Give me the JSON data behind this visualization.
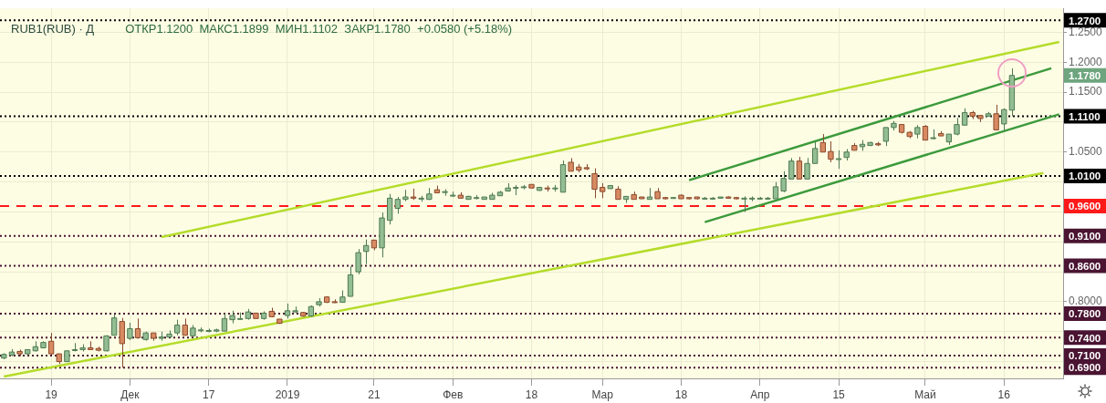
{
  "chart_data": {
    "type": "candlestick",
    "title": "RUB1(RUB) · Д",
    "subtitle": "ОТКР1.1200  МАКС1.1899  МИН1.1102  ЗАКР1.1780  +0.0580 (+5.18%)",
    "categories": [
      null,
      null,
      null,
      null,
      null,
      null,
      "19",
      null,
      null,
      null,
      null,
      null,
      null,
      null,
      null,
      null,
      "Дек",
      null,
      null,
      null,
      null,
      null,
      null,
      null,
      null,
      null,
      "17",
      null,
      null,
      null,
      null,
      null,
      null,
      null,
      null,
      null,
      "2019",
      null,
      null,
      null,
      null,
      null,
      null,
      null,
      null,
      null,
      null,
      "21",
      null,
      null,
      null,
      null,
      null,
      null,
      null,
      null,
      null,
      "Фев",
      null,
      null,
      null,
      null,
      null,
      null,
      null,
      null,
      null,
      "18",
      null,
      null,
      null,
      null,
      null,
      null,
      null,
      null,
      "Мар",
      null,
      null,
      null,
      null,
      null,
      null,
      null,
      null,
      null,
      "18",
      null,
      null,
      null,
      null,
      null,
      null,
      null,
      null,
      null,
      "Апр",
      null,
      null,
      null,
      null,
      null,
      null,
      null,
      null,
      null,
      "15",
      null,
      null,
      null,
      null,
      null,
      null,
      null,
      null,
      null,
      null,
      "Май",
      null,
      null,
      null,
      null,
      null,
      null,
      null,
      null,
      null,
      "16",
      null,
      null,
      null,
      null,
      null,
      null,
      null
    ],
    "ohlc": [
      [
        0.706,
        0.714,
        0.704,
        0.712
      ],
      [
        0.711,
        0.721,
        0.709,
        0.716
      ],
      [
        0.717,
        0.72,
        0.709,
        0.713
      ],
      [
        0.713,
        0.72,
        0.711,
        0.72
      ],
      [
        0.718,
        0.734,
        0.717,
        0.725
      ],
      [
        0.723,
        0.734,
        0.722,
        0.732
      ],
      [
        0.734,
        0.748,
        0.712,
        0.713
      ],
      [
        0.713,
        0.713,
        0.696,
        0.7
      ],
      [
        0.7,
        0.718,
        0.7,
        0.718
      ],
      [
        0.719,
        0.731,
        0.717,
        0.72
      ],
      [
        0.72,
        0.729,
        0.717,
        0.723
      ],
      [
        0.723,
        0.734,
        0.72,
        0.72
      ],
      [
        0.722,
        0.725,
        0.717,
        0.719
      ],
      [
        0.718,
        0.744,
        0.717,
        0.743
      ],
      [
        0.744,
        0.779,
        0.744,
        0.773
      ],
      [
        0.767,
        0.773,
        0.69,
        0.73
      ],
      [
        0.739,
        0.765,
        0.736,
        0.755
      ],
      [
        0.755,
        0.772,
        0.739,
        0.74
      ],
      [
        0.737,
        0.75,
        0.735,
        0.748
      ],
      [
        0.748,
        0.748,
        0.735,
        0.739
      ],
      [
        0.739,
        0.75,
        0.735,
        0.741
      ],
      [
        0.741,
        0.752,
        0.74,
        0.746
      ],
      [
        0.748,
        0.77,
        0.744,
        0.761
      ],
      [
        0.761,
        0.772,
        0.744,
        0.744
      ],
      [
        0.743,
        0.761,
        0.742,
        0.756
      ],
      [
        0.753,
        0.757,
        0.749,
        0.753
      ],
      [
        0.751,
        0.755,
        0.749,
        0.752
      ],
      [
        0.751,
        0.755,
        0.749,
        0.753
      ],
      [
        0.751,
        0.78,
        0.751,
        0.772
      ],
      [
        0.77,
        0.785,
        0.764,
        0.777
      ],
      [
        0.772,
        0.782,
        0.772,
        0.772
      ],
      [
        0.772,
        0.788,
        0.77,
        0.783
      ],
      [
        0.781,
        0.781,
        0.772,
        0.772
      ],
      [
        0.772,
        0.784,
        0.77,
        0.781
      ],
      [
        0.784,
        0.79,
        0.774,
        0.775
      ],
      [
        0.771,
        0.771,
        0.763,
        0.764
      ],
      [
        0.777,
        0.797,
        0.772,
        0.785
      ],
      [
        0.783,
        0.792,
        0.781,
        0.785
      ],
      [
        0.782,
        0.783,
        0.775,
        0.776
      ],
      [
        0.776,
        0.794,
        0.775,
        0.792
      ],
      [
        0.795,
        0.806,
        0.792,
        0.8
      ],
      [
        0.808,
        0.809,
        0.798,
        0.799
      ],
      [
        0.8,
        0.804,
        0.798,
        0.799
      ],
      [
        0.799,
        0.819,
        0.799,
        0.808
      ],
      [
        0.809,
        0.859,
        0.809,
        0.845
      ],
      [
        0.85,
        0.888,
        0.846,
        0.882
      ],
      [
        0.884,
        0.904,
        0.863,
        0.894
      ],
      [
        0.903,
        0.903,
        0.886,
        0.89
      ],
      [
        0.89,
        0.949,
        0.874,
        0.94
      ],
      [
        0.936,
        0.98,
        0.929,
        0.973
      ],
      [
        0.956,
        0.975,
        0.947,
        0.971
      ],
      [
        0.971,
        0.987,
        0.968,
        0.975
      ],
      [
        0.975,
        0.989,
        0.97,
        0.973
      ],
      [
        0.973,
        0.977,
        0.967,
        0.973
      ],
      [
        0.971,
        0.99,
        0.97,
        0.98
      ],
      [
        0.987,
        0.994,
        0.982,
        0.982
      ],
      [
        0.984,
        0.988,
        0.977,
        0.984
      ],
      [
        0.978,
        0.984,
        0.975,
        0.978
      ],
      [
        0.978,
        0.983,
        0.973,
        0.973
      ],
      [
        0.971,
        0.977,
        0.971,
        0.976
      ],
      [
        0.973,
        0.978,
        0.971,
        0.974
      ],
      [
        0.971,
        0.975,
        0.971,
        0.975
      ],
      [
        0.971,
        0.982,
        0.971,
        0.978
      ],
      [
        0.977,
        0.985,
        0.977,
        0.983
      ],
      [
        0.985,
        0.998,
        0.984,
        0.99
      ],
      [
        0.991,
        0.995,
        0.978,
        0.991
      ],
      [
        0.992,
        0.995,
        0.988,
        0.992
      ],
      [
        0.996,
        0.996,
        0.989,
        0.99
      ],
      [
        0.986,
        0.992,
        0.985,
        0.991
      ],
      [
        0.99,
        0.994,
        0.984,
        0.989
      ],
      [
        0.989,
        0.995,
        0.984,
        0.99
      ],
      [
        0.983,
        1.036,
        0.983,
        1.029
      ],
      [
        1.033,
        1.04,
        1.018,
        1.018
      ],
      [
        1.025,
        1.03,
        1.016,
        1.02
      ],
      [
        1.024,
        1.03,
        1.02,
        1.022
      ],
      [
        1.014,
        1.023,
        0.973,
        0.988
      ],
      [
        0.991,
        0.998,
        0.973,
        0.984
      ],
      [
        0.989,
        0.995,
        0.988,
        0.994
      ],
      [
        0.988,
        0.993,
        0.971,
        0.971
      ],
      [
        0.971,
        0.976,
        0.965,
        0.976
      ],
      [
        0.979,
        0.984,
        0.971,
        0.971
      ],
      [
        0.975,
        0.975,
        0.972,
        0.972
      ],
      [
        0.971,
        0.99,
        0.971,
        0.975
      ],
      [
        0.984,
        0.99,
        0.972,
        0.972
      ],
      [
        0.974,
        0.975,
        0.971,
        0.972
      ],
      [
        0.974,
        0.975,
        0.972,
        0.974
      ],
      [
        0.978,
        0.979,
        0.972,
        0.972
      ],
      [
        0.974,
        0.974,
        0.971,
        0.972
      ],
      [
        0.975,
        0.975,
        0.971,
        0.972
      ],
      [
        0.973,
        0.975,
        0.971,
        0.973
      ],
      [
        0.973,
        0.975,
        0.971,
        0.973
      ],
      [
        0.973,
        0.975,
        0.972,
        0.975
      ],
      [
        0.975,
        0.976,
        0.972,
        0.973
      ],
      [
        0.974,
        0.975,
        0.971,
        0.972
      ],
      [
        0.973,
        0.976,
        0.95,
        0.973
      ],
      [
        0.973,
        0.976,
        0.968,
        0.973
      ],
      [
        0.973,
        0.975,
        0.971,
        0.973
      ],
      [
        0.973,
        0.975,
        0.971,
        0.973
      ],
      [
        0.972,
        1.0,
        0.972,
        0.992
      ],
      [
        0.985,
        1.018,
        0.983,
        1.006
      ],
      [
        1.005,
        1.04,
        1.004,
        1.035
      ],
      [
        1.035,
        1.042,
        1.005,
        1.005
      ],
      [
        1.005,
        1.04,
        1.005,
        1.031
      ],
      [
        1.031,
        1.067,
        1.031,
        1.056
      ],
      [
        1.066,
        1.08,
        1.05,
        1.05
      ],
      [
        1.051,
        1.068,
        1.033,
        1.038
      ],
      [
        1.039,
        1.053,
        1.022,
        1.039
      ],
      [
        1.041,
        1.055,
        1.036,
        1.05
      ],
      [
        1.061,
        1.065,
        1.053,
        1.053
      ],
      [
        1.059,
        1.07,
        1.052,
        1.063
      ],
      [
        1.061,
        1.067,
        1.06,
        1.066
      ],
      [
        1.064,
        1.067,
        1.06,
        1.062
      ],
      [
        1.068,
        1.091,
        1.06,
        1.091
      ],
      [
        1.091,
        1.102,
        1.086,
        1.098
      ],
      [
        1.096,
        1.096,
        1.081,
        1.083
      ],
      [
        1.083,
        1.085,
        1.073,
        1.076
      ],
      [
        1.08,
        1.095,
        1.073,
        1.091
      ],
      [
        1.093,
        1.095,
        1.07,
        1.07
      ],
      [
        1.074,
        1.088,
        1.071,
        1.074
      ],
      [
        1.081,
        1.085,
        1.077,
        1.077
      ],
      [
        1.067,
        1.08,
        1.062,
        1.08
      ],
      [
        1.08,
        1.107,
        1.078,
        1.096
      ],
      [
        1.095,
        1.123,
        1.095,
        1.116
      ],
      [
        1.116,
        1.119,
        1.105,
        1.11
      ],
      [
        1.111,
        1.112,
        1.1,
        1.106
      ],
      [
        1.11,
        1.117,
        1.11,
        1.114
      ],
      [
        1.114,
        1.129,
        1.087,
        1.087
      ],
      [
        1.097,
        1.123,
        1.086,
        1.121
      ],
      [
        1.12,
        1.1899,
        1.1102,
        1.178
      ],
      null,
      null,
      null,
      null,
      null,
      null
    ],
    "series": [
      {
        "type": "line",
        "color": "#b4dc2a",
        "values": [
          null,
          null,
          null,
          null,
          null,
          null,
          null,
          null,
          null,
          null,
          null,
          null,
          null,
          null,
          null,
          null,
          null,
          null,
          null,
          null,
          0.908,
          null,
          null,
          null,
          null,
          null,
          null,
          null,
          null,
          null,
          null,
          null,
          null,
          null,
          null,
          null,
          null,
          null,
          null,
          null,
          null,
          null,
          null,
          null,
          null,
          null,
          null,
          null,
          null,
          null,
          null,
          null,
          null,
          null,
          null,
          null,
          null,
          null,
          null,
          null,
          null,
          null,
          null,
          null,
          null,
          null,
          null,
          null,
          null,
          null,
          null,
          null,
          null,
          null,
          null,
          null,
          null,
          null,
          null,
          null,
          null,
          null,
          null,
          null,
          null,
          null,
          null,
          null,
          null,
          null,
          null,
          null,
          null,
          null,
          null,
          null,
          null,
          null,
          null,
          null,
          null,
          null,
          null,
          null,
          null,
          null,
          null,
          null,
          null,
          null,
          null,
          null,
          null,
          null,
          null,
          null,
          null,
          null,
          null,
          null,
          null,
          null,
          null,
          null,
          null,
          null,
          null,
          null,
          null,
          null,
          null,
          null,
          null,
          null,
          1.234
        ]
      },
      {
        "type": "line",
        "color": "#b4dc2a",
        "values": [
          0.675,
          null,
          null,
          null,
          null,
          null,
          null,
          null,
          null,
          null,
          null,
          null,
          null,
          null,
          null,
          null,
          null,
          null,
          null,
          null,
          null,
          null,
          null,
          null,
          null,
          null,
          null,
          null,
          null,
          null,
          null,
          null,
          null,
          null,
          null,
          null,
          null,
          null,
          null,
          null,
          null,
          null,
          null,
          null,
          null,
          null,
          null,
          null,
          null,
          null,
          null,
          null,
          null,
          null,
          null,
          null,
          null,
          null,
          null,
          null,
          null,
          null,
          null,
          null,
          null,
          null,
          null,
          null,
          null,
          null,
          null,
          null,
          null,
          null,
          null,
          null,
          null,
          null,
          null,
          null,
          null,
          null,
          null,
          null,
          null,
          null,
          null,
          null,
          null,
          null,
          null,
          null,
          null,
          null,
          null,
          null,
          null,
          null,
          null,
          null,
          null,
          null,
          null,
          null,
          null,
          null,
          null,
          null,
          null,
          null,
          null,
          null,
          null,
          null,
          null,
          null,
          null,
          null,
          null,
          null,
          null,
          null,
          null,
          null,
          null,
          null,
          null,
          null,
          null,
          null,
          null,
          null,
          1.015,
          null,
          null
        ]
      },
      {
        "type": "line",
        "color": "#3c9a3c",
        "values": [
          null,
          null,
          null,
          null,
          null,
          null,
          null,
          null,
          null,
          null,
          null,
          null,
          null,
          null,
          null,
          null,
          null,
          null,
          null,
          null,
          null,
          null,
          null,
          null,
          null,
          null,
          null,
          null,
          null,
          null,
          null,
          null,
          null,
          null,
          null,
          null,
          null,
          null,
          null,
          null,
          null,
          null,
          null,
          null,
          null,
          null,
          null,
          null,
          null,
          null,
          null,
          null,
          null,
          null,
          null,
          null,
          null,
          null,
          null,
          null,
          null,
          null,
          null,
          null,
          null,
          null,
          null,
          null,
          null,
          null,
          null,
          null,
          null,
          null,
          null,
          null,
          null,
          null,
          null,
          null,
          null,
          null,
          null,
          null,
          null,
          null,
          null,
          1.003,
          null,
          null,
          null,
          null,
          null,
          null,
          null,
          null,
          null,
          null,
          null,
          null,
          null,
          null,
          null,
          null,
          null,
          null,
          null,
          null,
          null,
          null,
          null,
          null,
          null,
          null,
          null,
          null,
          null,
          null,
          null,
          null,
          null,
          null,
          null,
          null,
          null,
          null,
          null,
          null,
          null,
          null,
          null,
          null,
          null,
          1.19,
          null
        ]
      },
      {
        "type": "line",
        "color": "#3c9a3c",
        "values": [
          null,
          null,
          null,
          null,
          null,
          null,
          null,
          null,
          null,
          null,
          null,
          null,
          null,
          null,
          null,
          null,
          null,
          null,
          null,
          null,
          null,
          null,
          null,
          null,
          null,
          null,
          null,
          null,
          null,
          null,
          null,
          null,
          null,
          null,
          null,
          null,
          null,
          null,
          null,
          null,
          null,
          null,
          null,
          null,
          null,
          null,
          null,
          null,
          null,
          null,
          null,
          null,
          null,
          null,
          null,
          null,
          null,
          null,
          null,
          null,
          null,
          null,
          null,
          null,
          null,
          null,
          null,
          null,
          null,
          null,
          null,
          null,
          null,
          null,
          null,
          null,
          null,
          null,
          null,
          null,
          null,
          null,
          null,
          null,
          null,
          null,
          null,
          null,
          null,
          0.933,
          null,
          null,
          null,
          null,
          null,
          null,
          null,
          null,
          null,
          null,
          null,
          null,
          null,
          null,
          null,
          null,
          null,
          null,
          null,
          null,
          null,
          null,
          null,
          null,
          null,
          null,
          null,
          null,
          null,
          null,
          null,
          null,
          null,
          null,
          null,
          null,
          null,
          null,
          null,
          null,
          null,
          null,
          null,
          null,
          1.113
        ]
      }
    ],
    "ylim": [
      0.672,
      1.29
    ],
    "yticks": [
      {
        "value": 0.7,
        "label": null
      },
      {
        "value": 0.75,
        "label": null
      },
      {
        "value": 0.8,
        "label": "0.8000"
      },
      {
        "value": 0.85,
        "label": null
      },
      {
        "value": 0.9,
        "label": null
      },
      {
        "value": 0.95,
        "label": null
      },
      {
        "value": 1.0,
        "label": null
      },
      {
        "value": 1.05,
        "label": "1.0500"
      },
      {
        "value": 1.1,
        "label": null
      },
      {
        "value": 1.15,
        "label": "1.1500"
      },
      {
        "value": 1.2,
        "label": "1.2000"
      },
      {
        "value": 1.25,
        "label": "1.2500"
      }
    ],
    "ref_lines": [
      {
        "axis": "y",
        "value": 1.27,
        "label": "1.2700",
        "color": "#000000",
        "line_style": "dotted"
      },
      {
        "axis": "y",
        "value": 1.11,
        "label": "1.1100",
        "color": "#000000",
        "line_style": "dotted"
      },
      {
        "axis": "y",
        "value": 1.01,
        "label": "1.0100",
        "color": "#000000",
        "line_style": "dotted"
      },
      {
        "axis": "y",
        "value": 0.96,
        "label": "0.9600",
        "color": "#ff1a1a",
        "line_style": "dashed"
      },
      {
        "axis": "y",
        "value": 0.91,
        "label": "0.9100",
        "color": "#4a1432",
        "line_style": "dotted"
      },
      {
        "axis": "y",
        "value": 0.86,
        "label": "0.8600",
        "color": "#4a1432",
        "line_style": "dotted"
      },
      {
        "axis": "y",
        "value": 0.78,
        "label": "0.7800",
        "color": "#4a1432",
        "line_style": "dotted"
      },
      {
        "axis": "y",
        "value": 0.74,
        "label": "0.7400",
        "color": "#4a1432",
        "line_style": "dotted"
      },
      {
        "axis": "y",
        "value": 0.71,
        "label": "0.7100",
        "color": "#4a1432",
        "line_style": "dotted"
      },
      {
        "axis": "y",
        "value": 0.69,
        "label": "0.6900",
        "color": "#4a1432",
        "line_style": "dotted"
      }
    ],
    "annotations": [
      "1.1780"
    ],
    "grid": true
  }
}
